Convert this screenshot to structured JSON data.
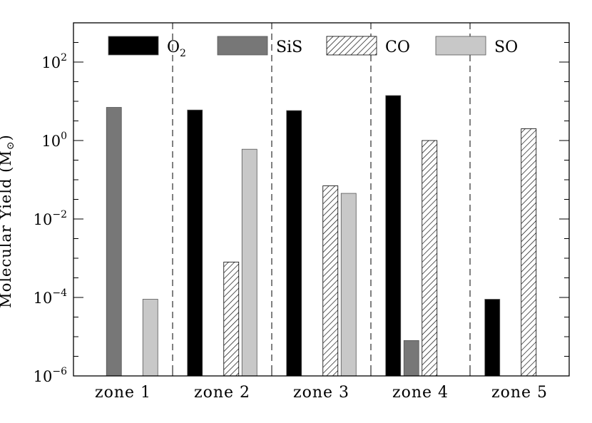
{
  "chart_data": {
    "type": "bar",
    "title": "",
    "xlabel": "",
    "ylabel": "Molecular Yield (M⊙)",
    "ylabel_parts": {
      "main": "Molecular Yield (M",
      "sub": "⊙",
      "close": ")"
    },
    "yscale": "log",
    "ylim": [
      1e-06,
      1000
    ],
    "yticks": [
      {
        "value": 1e-06,
        "base": "10",
        "exp": "−6"
      },
      {
        "value": 0.0001,
        "base": "10",
        "exp": "−4"
      },
      {
        "value": 0.01,
        "base": "10",
        "exp": "−2"
      },
      {
        "value": 1,
        "base": "10",
        "exp": "0"
      },
      {
        "value": 100,
        "base": "10",
        "exp": "2"
      }
    ],
    "categories": [
      "zone 1",
      "zone 2",
      "zone 3",
      "zone 4",
      "zone 5"
    ],
    "series": [
      {
        "name": "O2",
        "label_main": "O",
        "label_sub": "2",
        "fill": "#000000",
        "pattern": "solid",
        "values": [
          null,
          6.0,
          5.8,
          14,
          9e-05
        ]
      },
      {
        "name": "SiS",
        "label_main": "SiS",
        "label_sub": "",
        "fill": "#777777",
        "pattern": "solid",
        "values": [
          7.0,
          null,
          null,
          8e-06,
          null
        ]
      },
      {
        "name": "CO",
        "label_main": "CO",
        "label_sub": "",
        "fill": "#ffffff",
        "pattern": "hatch",
        "values": [
          null,
          0.0008,
          0.07,
          1.0,
          2.0
        ]
      },
      {
        "name": "SO",
        "label_main": "SO",
        "label_sub": "",
        "fill": "#c8c8c8",
        "pattern": "solid",
        "values": [
          9e-05,
          0.6,
          0.045,
          null,
          null
        ]
      }
    ],
    "zone_separators": "dashed",
    "legend": "top"
  }
}
